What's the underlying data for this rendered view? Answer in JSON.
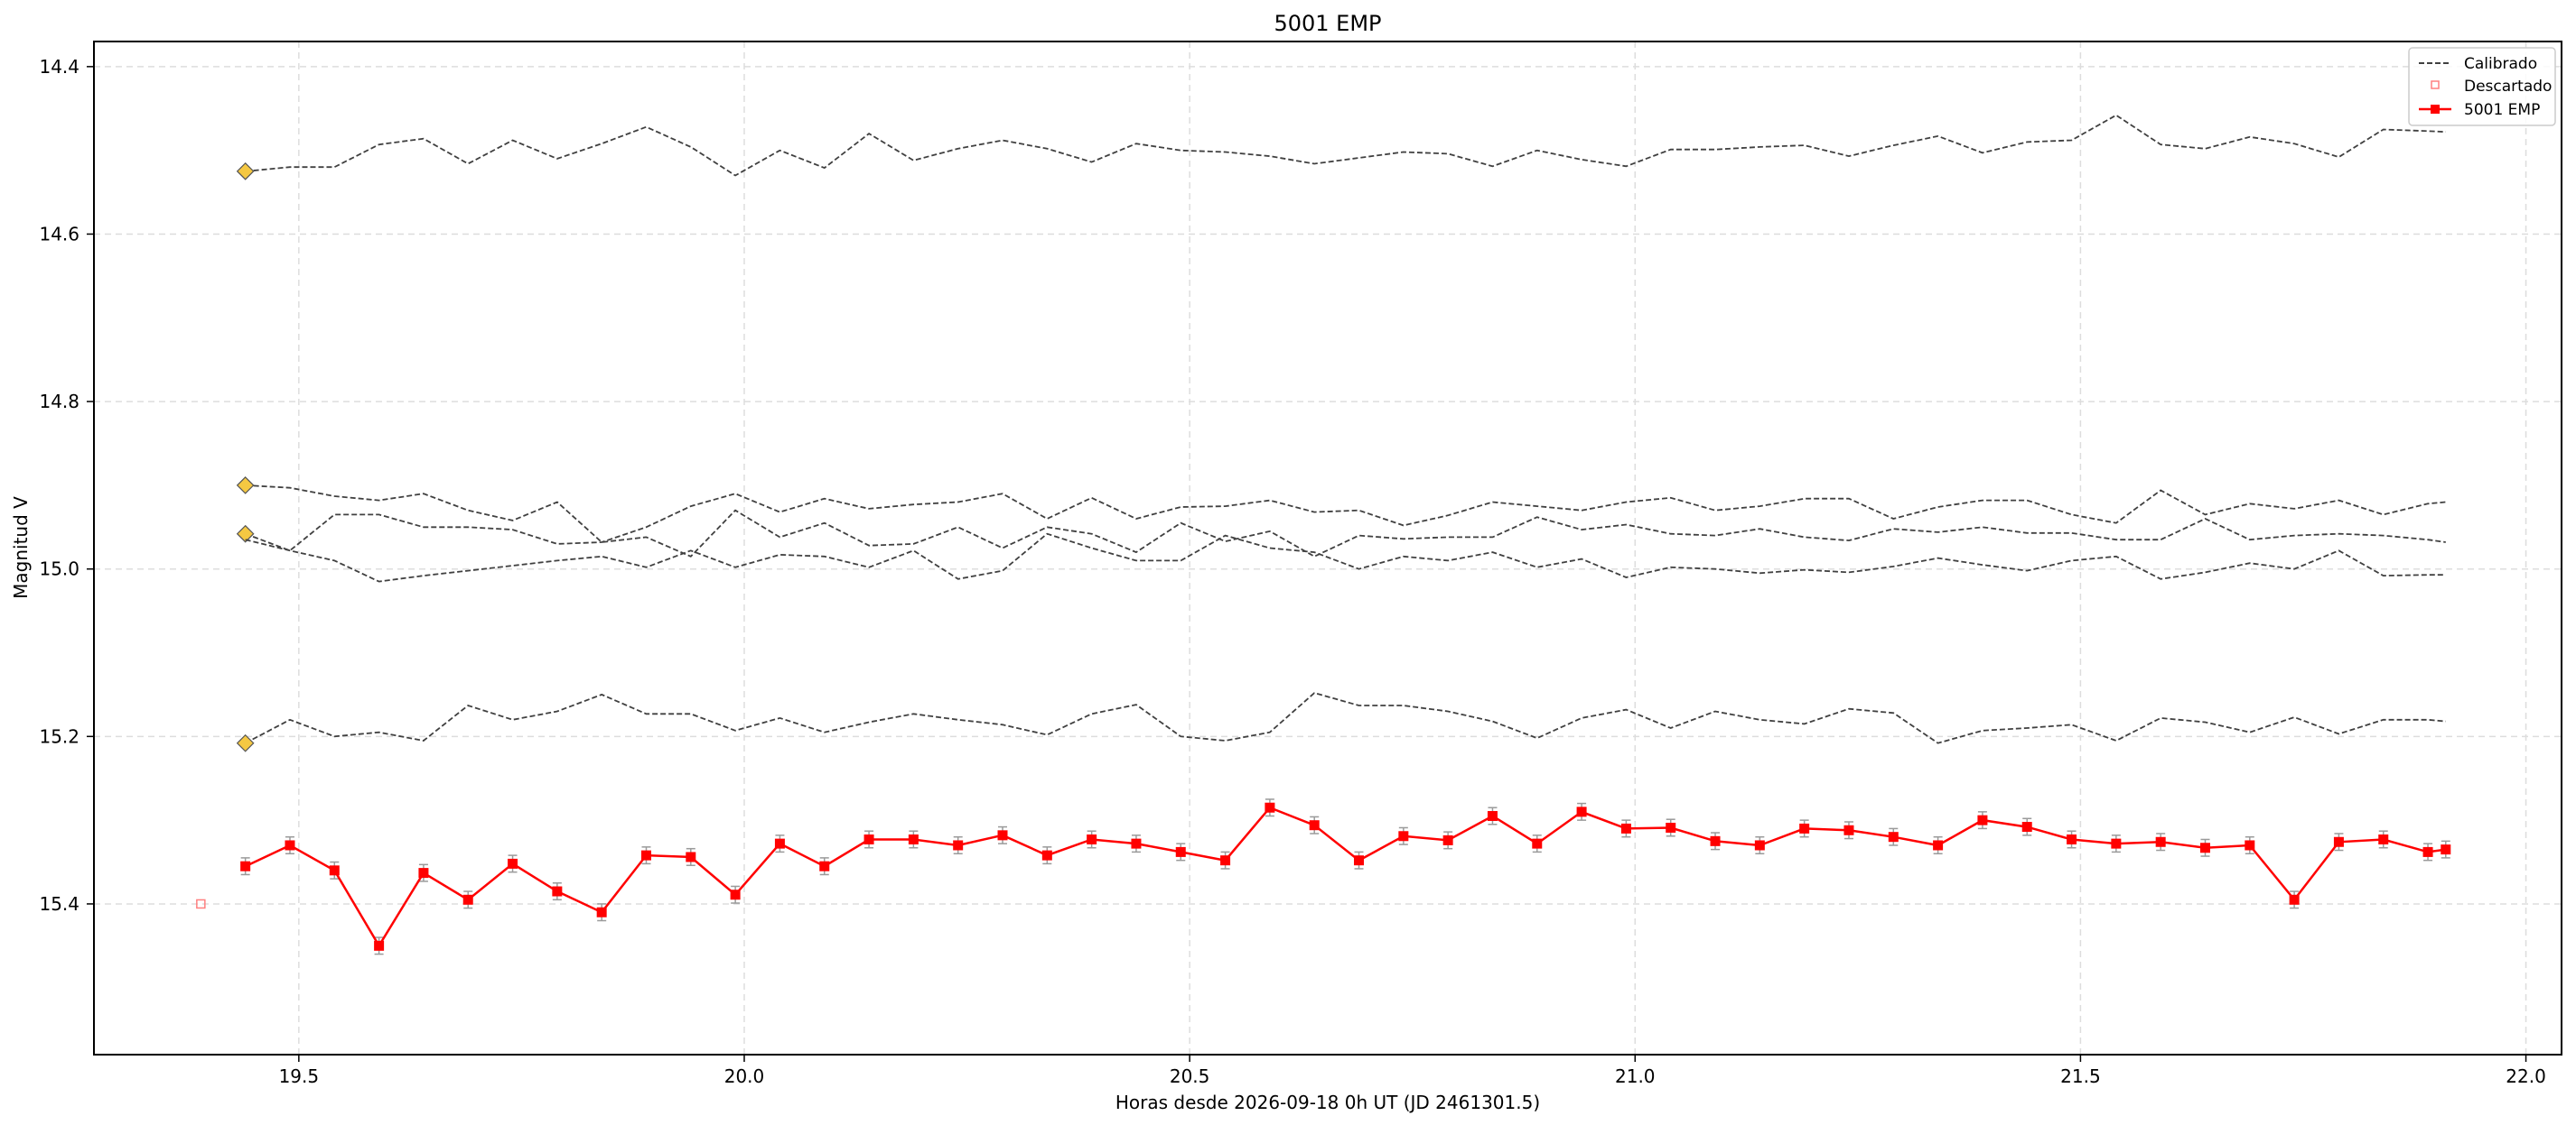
{
  "chart_data": {
    "type": "line",
    "title": "5001 EMP",
    "xlabel": "Horas desde 2026-09-18 0h UT (JD 2461301.5)",
    "ylabel": "Magnitud V",
    "xlim": [
      19.27,
      22.04
    ],
    "ylim": [
      15.58,
      14.37
    ],
    "y_inverted": true,
    "grid": true,
    "legend_position": "top-right",
    "xticks": [
      19.5,
      20.0,
      20.5,
      21.0,
      21.5,
      22.0
    ],
    "xtick_labels": [
      "19.5",
      "20.0",
      "20.5",
      "21.0",
      "21.5",
      "22.0"
    ],
    "yticks": [
      14.4,
      14.6,
      14.8,
      15.0,
      15.2,
      15.4
    ],
    "ytick_labels": [
      "14.4",
      "14.6",
      "14.8",
      "15.0",
      "15.2",
      "15.4"
    ],
    "legend": [
      {
        "label": "Calibrado",
        "style": "dashed",
        "color": "#404040"
      },
      {
        "label": "Descartado",
        "style": "open-square",
        "color": "#ff8080"
      },
      {
        "label": "5001 EMP",
        "style": "line-square",
        "color": "#ff0000"
      }
    ],
    "x": [
      19.44,
      19.49,
      19.54,
      19.59,
      19.64,
      19.69,
      19.74,
      19.79,
      19.84,
      19.89,
      19.94,
      19.99,
      20.04,
      20.09,
      20.14,
      20.19,
      20.24,
      20.29,
      20.34,
      20.39,
      20.44,
      20.49,
      20.54,
      20.59,
      20.64,
      20.69,
      20.74,
      20.79,
      20.84,
      20.89,
      20.94,
      20.99,
      21.04,
      21.09,
      21.14,
      21.19,
      21.24,
      21.29,
      21.34,
      21.39,
      21.44,
      21.49,
      21.54,
      21.59,
      21.64,
      21.69,
      21.74,
      21.79,
      21.84,
      21.89,
      21.91
    ],
    "calibrated_series": [
      {
        "start_marker": true,
        "values": [
          14.525,
          14.52,
          14.52,
          14.493,
          14.486,
          14.516,
          14.488,
          14.51,
          14.492,
          14.472,
          14.496,
          14.53,
          14.5,
          14.521,
          14.48,
          14.512,
          14.498,
          14.488,
          14.498,
          14.514,
          14.492,
          14.5,
          14.502,
          14.507,
          14.516,
          14.509,
          14.502,
          14.504,
          14.519,
          14.5,
          14.511,
          14.519,
          14.499,
          14.499,
          14.496,
          14.494,
          14.507,
          14.494,
          14.483,
          14.503,
          14.49,
          14.488,
          14.458,
          14.493,
          14.498,
          14.484,
          14.492,
          14.508,
          14.475,
          14.477,
          14.478
        ]
      },
      {
        "start_marker": true,
        "values": [
          14.9,
          14.903,
          14.913,
          14.918,
          14.91,
          14.93,
          14.942,
          14.92,
          14.968,
          14.962,
          14.985,
          14.93,
          14.962,
          14.945,
          14.972,
          14.97,
          14.95,
          14.975,
          14.95,
          14.958,
          14.98,
          14.945,
          14.967,
          14.955,
          14.985,
          14.96,
          14.964,
          14.962,
          14.962,
          14.938,
          14.953,
          14.947,
          14.958,
          14.96,
          14.952,
          14.962,
          14.966,
          14.952,
          14.956,
          14.95,
          14.957,
          14.957,
          14.965,
          14.965,
          14.94,
          14.965,
          14.96,
          14.958,
          14.96,
          14.965,
          14.968
        ]
      },
      {
        "start_marker": true,
        "values": [
          14.958,
          14.978,
          14.935,
          14.935,
          14.95,
          14.95,
          14.953,
          14.97,
          14.968,
          14.95,
          14.925,
          14.91,
          14.932,
          14.916,
          14.928,
          14.923,
          14.92,
          14.91,
          14.94,
          14.915,
          14.94,
          14.926,
          14.925,
          14.918,
          14.932,
          14.93,
          14.948,
          14.936,
          14.92,
          14.925,
          14.93,
          14.92,
          14.915,
          14.93,
          14.925,
          14.916,
          14.916,
          14.94,
          14.926,
          14.918,
          14.918,
          14.935,
          14.945,
          14.906,
          14.935,
          14.922,
          14.928,
          14.918,
          14.935,
          14.922,
          14.92
        ]
      },
      {
        "start_marker": false,
        "values": [
          14.965,
          14.978,
          14.99,
          15.015,
          15.008,
          15.002,
          14.996,
          14.99,
          14.985,
          14.998,
          14.978,
          14.998,
          14.983,
          14.985,
          14.998,
          14.978,
          15.012,
          15.002,
          14.958,
          14.975,
          14.99,
          14.99,
          14.96,
          14.975,
          14.98,
          15.0,
          14.985,
          14.99,
          14.98,
          14.998,
          14.988,
          15.01,
          14.998,
          15.0,
          15.005,
          15.001,
          15.004,
          14.997,
          14.987,
          14.995,
          15.002,
          14.99,
          14.985,
          15.012,
          15.004,
          14.993,
          15.0,
          14.978,
          15.008,
          15.007,
          15.007
        ]
      },
      {
        "start_marker": true,
        "values": [
          15.208,
          15.18,
          15.2,
          15.195,
          15.205,
          15.163,
          15.18,
          15.17,
          15.15,
          15.173,
          15.173,
          15.193,
          15.178,
          15.195,
          15.183,
          15.173,
          15.18,
          15.186,
          15.198,
          15.173,
          15.162,
          15.2,
          15.205,
          15.195,
          15.148,
          15.163,
          15.163,
          15.17,
          15.182,
          15.202,
          15.178,
          15.168,
          15.19,
          15.17,
          15.18,
          15.185,
          15.167,
          15.172,
          15.208,
          15.193,
          15.19,
          15.186,
          15.205,
          15.178,
          15.183,
          15.195,
          15.177,
          15.197,
          15.18,
          15.18,
          15.182
        ]
      }
    ],
    "target_series": {
      "name": "5001 EMP",
      "x": [
        19.44,
        19.49,
        19.54,
        19.59,
        19.64,
        19.69,
        19.74,
        19.79,
        19.84,
        19.89,
        19.94,
        19.99,
        20.04,
        20.09,
        20.14,
        20.19,
        20.24,
        20.29,
        20.34,
        20.39,
        20.44,
        20.49,
        20.54,
        20.59,
        20.64,
        20.69,
        20.74,
        20.79,
        20.84,
        20.89,
        20.94,
        20.99,
        21.04,
        21.09,
        21.14,
        21.19,
        21.24,
        21.29,
        21.34,
        21.39,
        21.44,
        21.49,
        21.54,
        21.59,
        21.64,
        21.69,
        21.74,
        21.79,
        21.84,
        21.89,
        21.91
      ],
      "values": [
        15.355,
        15.33,
        15.36,
        15.45,
        15.363,
        15.395,
        15.352,
        15.385,
        15.41,
        15.342,
        15.344,
        15.389,
        15.328,
        15.355,
        15.323,
        15.323,
        15.33,
        15.318,
        15.342,
        15.323,
        15.328,
        15.338,
        15.348,
        15.285,
        15.306,
        15.348,
        15.319,
        15.324,
        15.295,
        15.328,
        15.29,
        15.31,
        15.309,
        15.325,
        15.33,
        15.31,
        15.312,
        15.32,
        15.33,
        15.3,
        15.308,
        15.323,
        15.328,
        15.326,
        15.333,
        15.33,
        15.395,
        15.326,
        15.323,
        15.338,
        15.335
      ],
      "error": 0.01
    },
    "discarded": [
      {
        "x": 19.39,
        "y": 15.4
      }
    ]
  }
}
